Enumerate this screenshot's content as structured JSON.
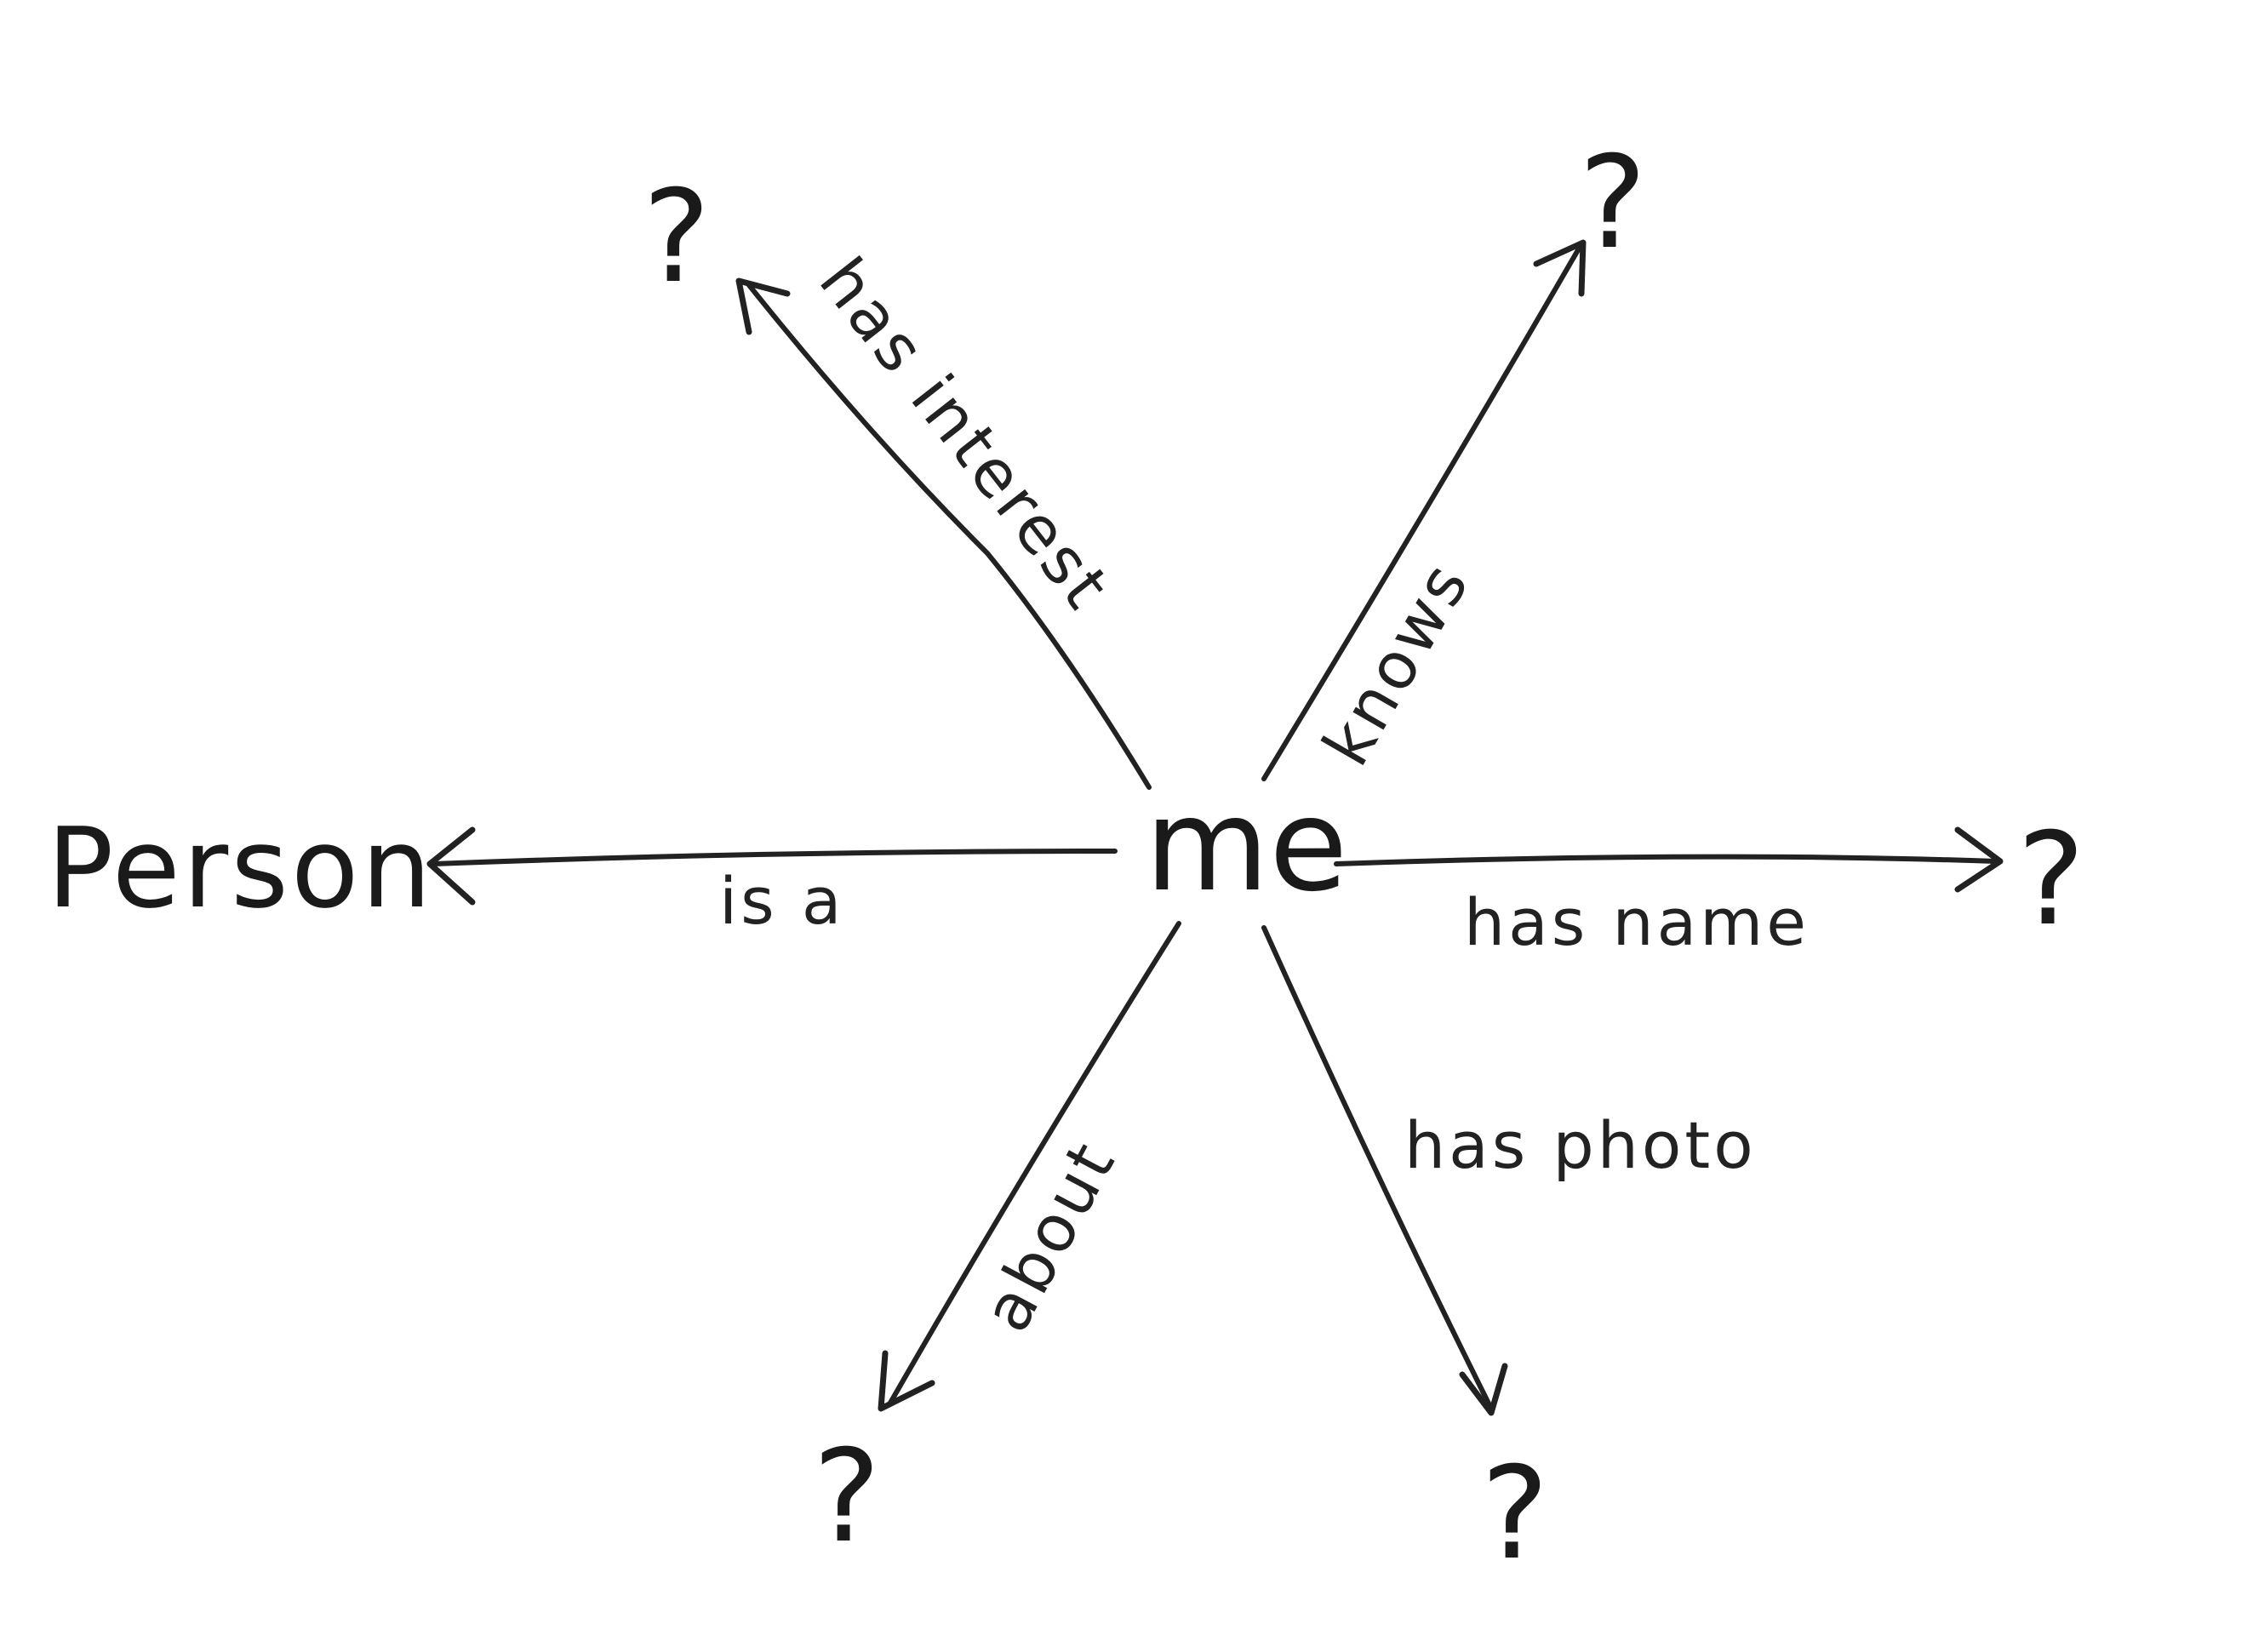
{
  "diagram": {
    "center": "me",
    "nodes": {
      "class_node": "Person",
      "interest_target": "?",
      "knows_target": "?",
      "name_target": "?",
      "photo_target": "?",
      "about_target": "?"
    },
    "edges": {
      "is_a": "is a",
      "has_interest": "has interest",
      "knows": "knows",
      "has_name": "has name",
      "has_photo": "has photo",
      "about": "about"
    },
    "ink_color": "#222222",
    "background_color": "#ffffff"
  }
}
